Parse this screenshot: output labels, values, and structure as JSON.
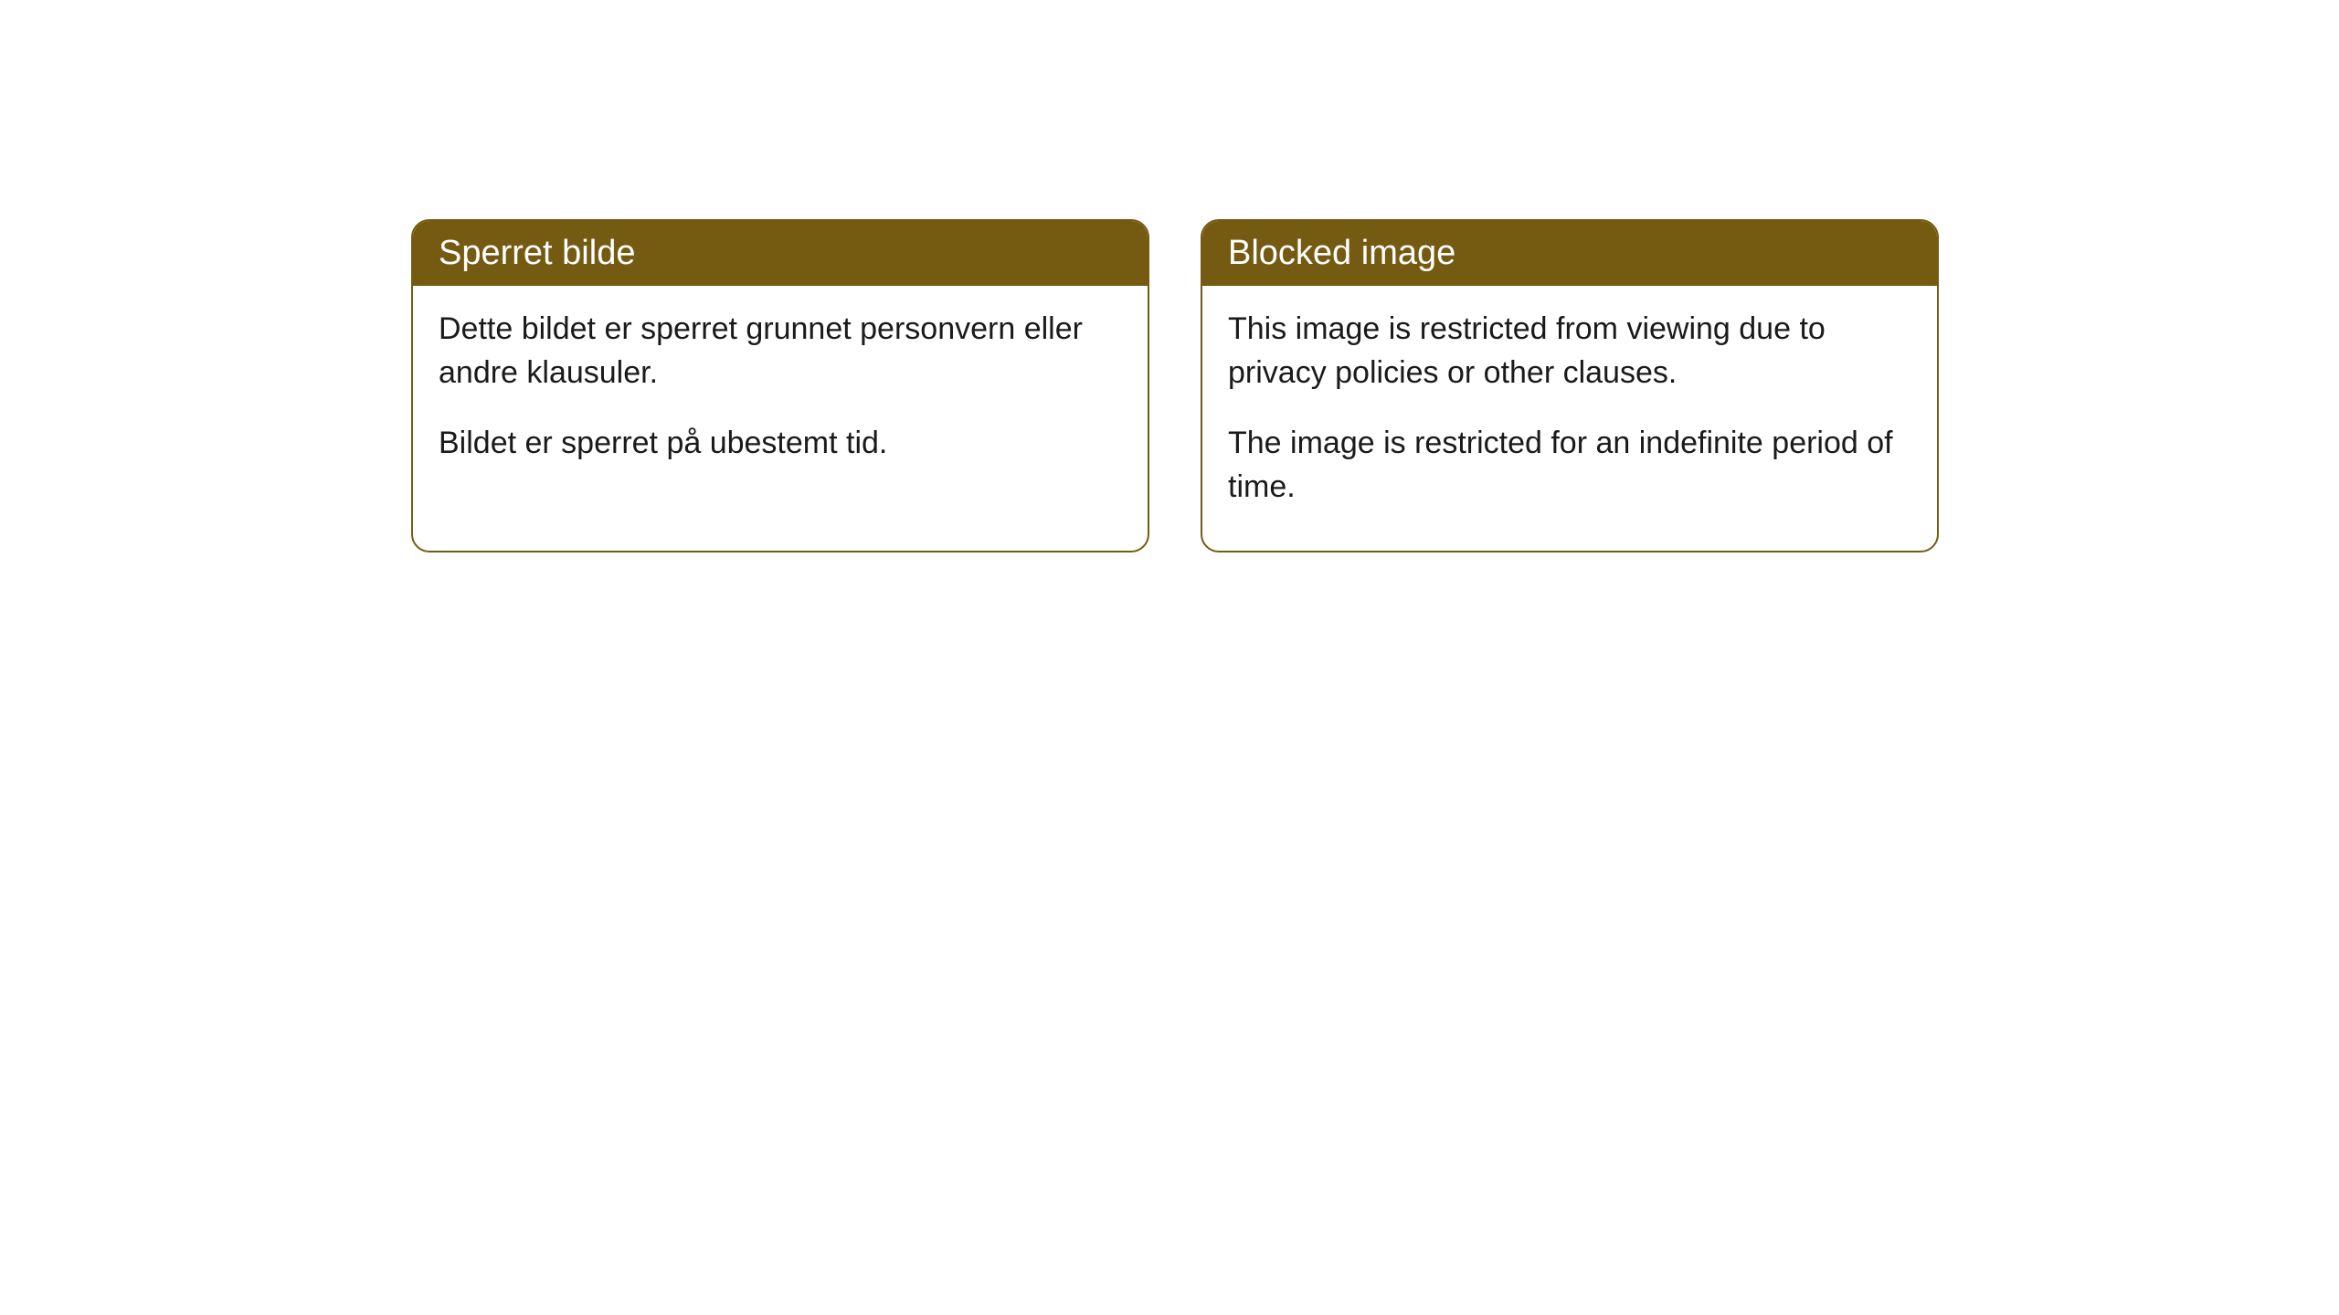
{
  "cards": [
    {
      "title": "Sperret bilde",
      "paragraph1": "Dette bildet er sperret grunnet personvern eller andre klausuler.",
      "paragraph2": "Bildet er sperret på ubestemt tid."
    },
    {
      "title": "Blocked image",
      "paragraph1": "This image is restricted from viewing due to privacy policies or other clauses.",
      "paragraph2": "The image is restricted for an indefinite period of time."
    }
  ],
  "style": {
    "header_background": "#755a12",
    "header_text_color": "#ffffff",
    "border_color": "#755a12",
    "body_background": "#ffffff",
    "body_text_color": "#1a1a1a",
    "border_radius": 20,
    "title_fontsize": 38,
    "body_fontsize": 34
  }
}
